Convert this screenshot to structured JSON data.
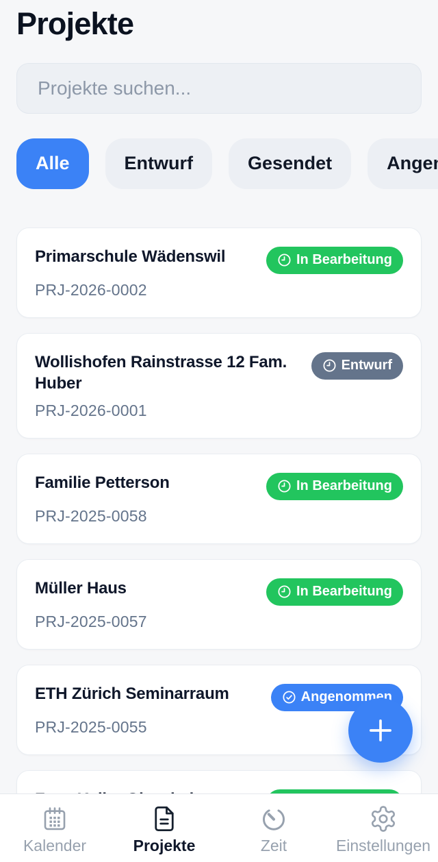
{
  "header": {
    "title": "Projekte"
  },
  "search": {
    "placeholder": "Projekte suchen...",
    "value": ""
  },
  "filters": [
    {
      "label": "Alle",
      "active": true
    },
    {
      "label": "Entwurf",
      "active": false
    },
    {
      "label": "Gesendet",
      "active": false
    },
    {
      "label": "Angenommen",
      "active": false
    }
  ],
  "projects": [
    {
      "name": "Primarschule Wädenswil",
      "code": "PRJ-2026-0002",
      "status": {
        "label": "In Bearbeitung",
        "color": "#22c55e",
        "icon": "clock"
      }
    },
    {
      "name": "Wollishofen Rainstrasse 12 Fam. Huber",
      "code": "PRJ-2026-0001",
      "status": {
        "label": "Entwurf",
        "color": "#64748b",
        "icon": "clock"
      }
    },
    {
      "name": "Familie Petterson",
      "code": "PRJ-2025-0058",
      "status": {
        "label": "In Bearbeitung",
        "color": "#22c55e",
        "icon": "clock"
      }
    },
    {
      "name": "Müller Haus",
      "code": "PRJ-2025-0057",
      "status": {
        "label": "In Bearbeitung",
        "color": "#22c55e",
        "icon": "clock"
      }
    },
    {
      "name": "ETH Zürich Seminarraum",
      "code": "PRJ-2025-0055",
      "status": {
        "label": "Angenommen",
        "color": "#3b82f6",
        "icon": "check-circle"
      }
    },
    {
      "name": "Fam. Keller Oberrieden",
      "status": {
        "label": "In Bearbeitung",
        "color": "#22c55e",
        "icon": "clock"
      }
    }
  ],
  "fab": {
    "icon": "plus-icon",
    "color": "#3b82f6"
  },
  "tabbar": [
    {
      "label": "Kalender",
      "icon": "calendar-icon",
      "active": false
    },
    {
      "label": "Projekte",
      "icon": "document-icon",
      "active": true
    },
    {
      "label": "Zeit",
      "icon": "timer-icon",
      "active": false
    },
    {
      "label": "Einstellungen",
      "icon": "gear-icon",
      "active": false
    }
  ],
  "colors": {
    "accent": "#3b82f6",
    "status_in_progress": "#22c55e",
    "status_draft": "#64748b",
    "status_accepted": "#3b82f6",
    "background": "#f6f7f9",
    "card_background": "#ffffff"
  }
}
